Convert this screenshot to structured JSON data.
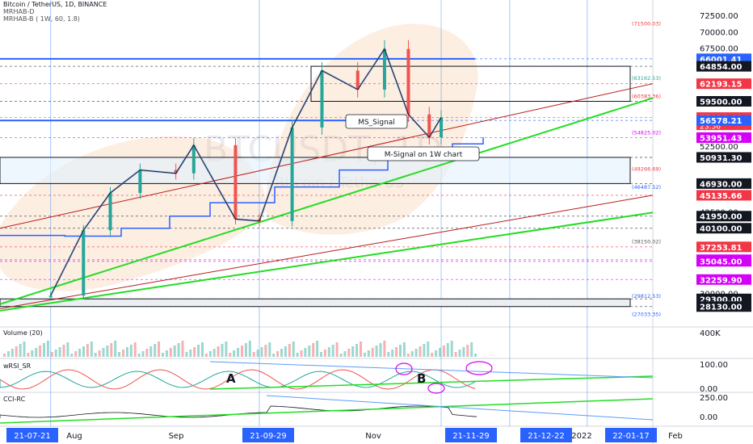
{
  "header": {
    "symbol_line": "Bitcoin / TetherUS, 1D, BINANCE",
    "indicator_1": "MRHAB-D",
    "indicator_2": "MRHAB-B ( 1W, 60, 1.8)"
  },
  "watermark": {
    "ticker": "BTCUSDT, 1D",
    "name": "Bitcoin / TetherUS"
  },
  "annotations": {
    "ms_signal": "MS_Signal",
    "m_signal": "M-Signal on 1W chart",
    "label_a": "A",
    "label_b": "B"
  },
  "price_axis": {
    "ticks": [
      "72500.00",
      "70000.00",
      "67500.00",
      "52500.00",
      "42500.00",
      "30000.00"
    ],
    "badges": [
      {
        "label": "66001.41",
        "price": 66001.41,
        "color": "#2962ff"
      },
      {
        "label": "64854.00",
        "price": 64854,
        "color": "#131722"
      },
      {
        "label": "62193.15",
        "price": 62193.15,
        "color": "#f23645"
      },
      {
        "label": "59500.00",
        "price": 59500,
        "color": "#131722"
      },
      {
        "label": "57020.09",
        "price": 57020.09,
        "color": "#f23645",
        "extra": "23:56"
      },
      {
        "label": "56578.21",
        "price": 56578.21,
        "color": "#2962ff"
      },
      {
        "label": "53951.43",
        "price": 53951.43,
        "color": "#d500f9"
      },
      {
        "label": "50931.30",
        "price": 50931.3,
        "color": "#131722"
      },
      {
        "label": "46930.00",
        "price": 46930,
        "color": "#131722"
      },
      {
        "label": "45135.66",
        "price": 45135.66,
        "color": "#f23645"
      },
      {
        "label": "41950.00",
        "price": 41950,
        "color": "#131722"
      },
      {
        "label": "40100.00",
        "price": 40100,
        "color": "#131722"
      },
      {
        "label": "37253.81",
        "price": 37253.81,
        "color": "#f23645"
      },
      {
        "label": "35286.51",
        "price": 35286.51,
        "color": "#d500f9"
      },
      {
        "label": "35045.00",
        "price": 35045,
        "color": "#d500f9"
      },
      {
        "label": "32259.90",
        "price": 32259.9,
        "color": "#d500f9"
      },
      {
        "label": "29300.00",
        "price": 29300,
        "color": "#131722"
      },
      {
        "label": "28130.00",
        "price": 28130,
        "color": "#131722"
      }
    ],
    "level_labels": [
      {
        "label": "(71500.03)",
        "price": 71500.03,
        "color": "#f23645"
      },
      {
        "label": "(63162.53)",
        "price": 63162.53,
        "color": "#26a69a"
      },
      {
        "label": "(60383.36)",
        "price": 60383.36,
        "color": "#f23645"
      },
      {
        "label": "(54825.02)",
        "price": 54825.02,
        "color": "#d500f9"
      },
      {
        "label": "(49266.69)",
        "price": 49266.69,
        "color": "#f23645"
      },
      {
        "label": "(46487.52)",
        "price": 46487.52,
        "color": "#2962ff"
      },
      {
        "label": "(38150.02)",
        "price": 38150.02,
        "color": "#555555"
      },
      {
        "label": "(29812.53)",
        "price": 29812.53,
        "color": "#2962ff"
      },
      {
        "label": "(27033.35)",
        "price": 27033.35,
        "color": "#2962ff"
      }
    ]
  },
  "volume_pane": {
    "title": "Volume (20)",
    "axis_label": "400K"
  },
  "rsi_pane": {
    "title": "wRSI_SR",
    "ticks": [
      "100.00",
      "0.00"
    ]
  },
  "cci_pane": {
    "title": "CCI-RC",
    "ticks": [
      "250.00",
      "0.00"
    ]
  },
  "time_axis": {
    "labels": [
      {
        "text": "21-07-21",
        "highlight": true
      },
      {
        "text": "Aug",
        "highlight": false
      },
      {
        "text": "Sep",
        "highlight": false
      },
      {
        "text": "21-09-29",
        "highlight": true
      },
      {
        "text": "Nov",
        "highlight": false
      },
      {
        "text": "21-11-29",
        "highlight": true
      },
      {
        "text": "21-12-22",
        "highlight": true
      },
      {
        "text": "2022",
        "highlight": false
      },
      {
        "text": "22-01-17",
        "highlight": true
      },
      {
        "text": "Feb",
        "highlight": false
      }
    ]
  },
  "chart_data": {
    "type": "line",
    "title": "Bitcoin / TetherUS, 1D, BINANCE",
    "x": [
      "2021-07-21",
      "2021-08-01",
      "2021-08-10",
      "2021-08-20",
      "2021-09-01",
      "2021-09-07",
      "2021-09-21",
      "2021-09-29",
      "2021-10-10",
      "2021-10-20",
      "2021-11-01",
      "2021-11-10",
      "2021-11-18",
      "2021-11-25",
      "2021-11-29"
    ],
    "series": [
      {
        "values": [
          29800,
          39800,
          45500,
          49000,
          48500,
          52800,
          41500,
          41200,
          55500,
          64200,
          61300,
          67500,
          57500,
          54000,
          57020
        ]
      }
    ],
    "ylim": [
      26000,
      74000
    ],
    "last_price": 57020.09
  }
}
